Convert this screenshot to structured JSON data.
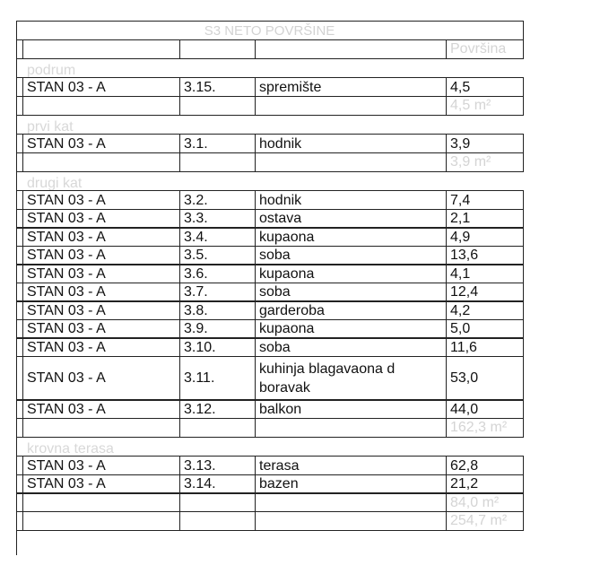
{
  "title": "S3 NETO POVRŠINE",
  "header": {
    "area_label": "Površina"
  },
  "sections": [
    {
      "label": "podrum",
      "rows": [
        {
          "unit": "STAN 03 - A",
          "no": "3.15.",
          "room": "spremište",
          "area": "4,5"
        }
      ],
      "subtotal": "4,5 m²"
    },
    {
      "label": "prvi  kat",
      "rows": [
        {
          "unit": "STAN 03 - A",
          "no": "3.1.",
          "room": "hodnik",
          "area": "3,9"
        }
      ],
      "subtotal": "3,9 m²"
    },
    {
      "label": "drugi kat",
      "rows": [
        {
          "unit": "STAN 03 - A",
          "no": "3.2.",
          "room": "hodnik",
          "area": "7,4"
        },
        {
          "unit": "STAN 03 - A",
          "no": "3.3.",
          "room": "ostava",
          "area": "2,1"
        },
        {
          "unit": "STAN 03 - A",
          "no": "3.4.",
          "room": "kupaona",
          "area": "4,9"
        },
        {
          "unit": "STAN 03 - A",
          "no": "3.5.",
          "room": "soba",
          "area": "13,6"
        },
        {
          "unit": "STAN 03 - A",
          "no": "3.6.",
          "room": "kupaona",
          "area": "4,1"
        },
        {
          "unit": "STAN 03 - A",
          "no": "3.7.",
          "room": "soba",
          "area": "12,4"
        },
        {
          "unit": "STAN 03 - A",
          "no": "3.8.",
          "room": "garderoba",
          "area": "4,2"
        },
        {
          "unit": "STAN 03 - A",
          "no": "3.9.",
          "room": "kupaona",
          "area": "5,0"
        },
        {
          "unit": "STAN 03 - A",
          "no": "3.10.",
          "room": "soba",
          "area": "11,6"
        },
        {
          "unit": "STAN 03 - A",
          "no": "3.11.",
          "room": "kuhinja blagavaona d boravak",
          "area": "53,0"
        },
        {
          "unit": "STAN 03 - A",
          "no": "3.12.",
          "room": "balkon",
          "area": "44,0"
        }
      ],
      "subtotal": "162,3 m²"
    },
    {
      "label": "krovna terasa",
      "rows": [
        {
          "unit": "STAN 03 - A",
          "no": "3.13.",
          "room": "terasa",
          "area": "62,8"
        },
        {
          "unit": "STAN 03 - A",
          "no": "3.14.",
          "room": "bazen",
          "area": "21,2"
        }
      ],
      "subtotal": "84,0 m²"
    }
  ],
  "total": "254,7 m²"
}
